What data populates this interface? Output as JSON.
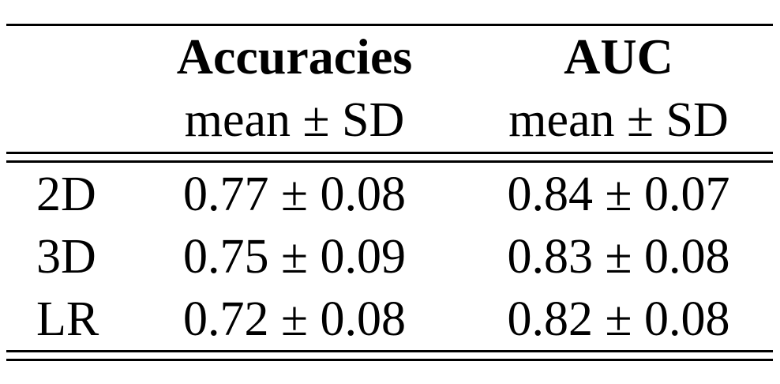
{
  "meta": {
    "background_color": "#ffffff",
    "text_color": "#000000",
    "rule_color": "#000000"
  },
  "table": {
    "header": {
      "col1": "",
      "col2": "Accuracies",
      "col3": "AUC"
    },
    "subheader": {
      "col1": "",
      "col2": "mean ± SD",
      "col3": "mean ± SD"
    },
    "rows": [
      {
        "label": "2D",
        "accuracies": "0.77 ± 0.08",
        "auc": "0.84 ± 0.07"
      },
      {
        "label": "3D",
        "accuracies": "0.75 ± 0.09",
        "auc": "0.83 ± 0.08"
      },
      {
        "label": "LR",
        "accuracies": "0.72 ± 0.08",
        "auc": "0.82 ± 0.08"
      }
    ]
  }
}
